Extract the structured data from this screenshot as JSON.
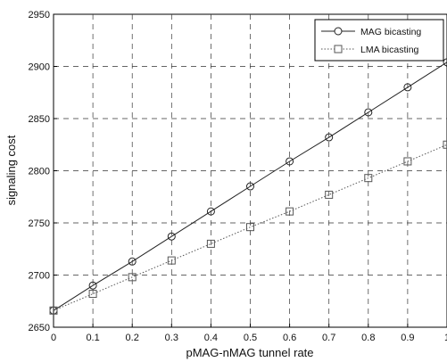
{
  "chart_data": {
    "type": "line",
    "title": "",
    "xlabel": "pMAG-nMAG tunnel rate",
    "ylabel": "signaling cost",
    "xlim": [
      0,
      1
    ],
    "ylim": [
      2650,
      2950
    ],
    "x_ticks": [
      "0",
      "0.1",
      "0.2",
      "0.3",
      "0.4",
      "0.5",
      "0.6",
      "0.7",
      "0.8",
      "0.9",
      "1"
    ],
    "y_ticks": [
      "2650",
      "2700",
      "2750",
      "2800",
      "2850",
      "2900",
      "2950"
    ],
    "grid": true,
    "legend_position": "top-right",
    "x": [
      0,
      0.1,
      0.2,
      0.3,
      0.4,
      0.5,
      0.6,
      0.7,
      0.8,
      0.9,
      1.0
    ],
    "series": [
      {
        "name": "MAG bicasting",
        "marker": "circle",
        "color": "#222222",
        "values": [
          2666,
          2690,
          2713,
          2737,
          2761,
          2785,
          2809,
          2832,
          2856,
          2880,
          2904
        ]
      },
      {
        "name": "LMA bicasting",
        "marker": "square",
        "color": "#555555",
        "values": [
          2666,
          2682,
          2698,
          2714,
          2730,
          2746,
          2761,
          2777,
          2793,
          2809,
          2825
        ]
      }
    ]
  }
}
